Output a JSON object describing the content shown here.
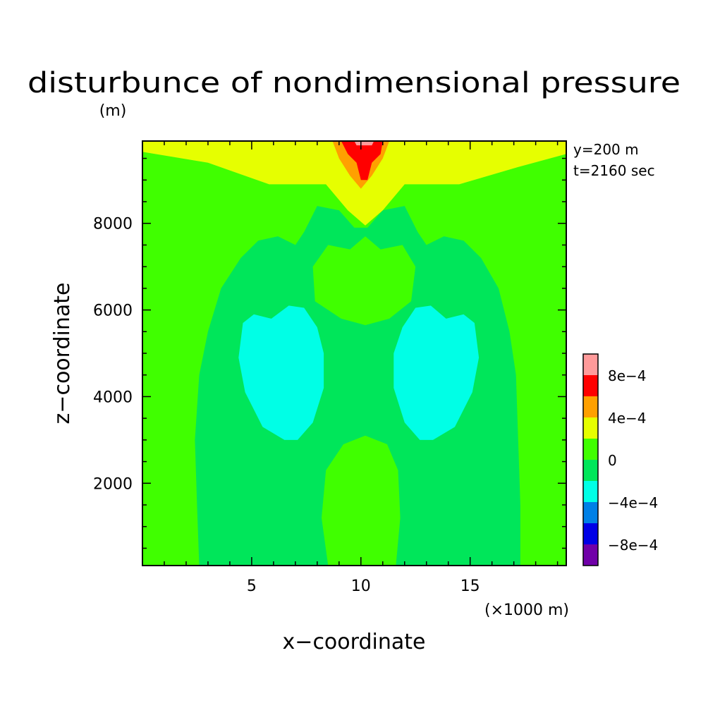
{
  "chart_data": {
    "type": "heatmap",
    "title": "disturbunce of nondimensional pressure",
    "y_unit": "(m)",
    "xlabel": "x−coordinate",
    "ylabel": "z−coordinate",
    "x_unit": "(×1000 m)",
    "annotations": [
      "y=200 m",
      "t=2160 sec"
    ],
    "xlim": [
      0,
      19.4
    ],
    "ylim": [
      100,
      9900
    ],
    "x_ticks": [
      5,
      10,
      15
    ],
    "x_tick_labels": [
      "5",
      "10",
      "15"
    ],
    "y_ticks": [
      2000,
      4000,
      6000,
      8000
    ],
    "y_tick_labels": [
      "2000",
      "4000",
      "6000",
      "8000"
    ],
    "colorbar": {
      "levels": [
        -0.001,
        -0.0008,
        -0.0006,
        -0.0004,
        -0.0002,
        0,
        0.0002,
        0.0004,
        0.0006,
        0.0008,
        0.001
      ],
      "colors": [
        "#7000a8",
        "#0000e6",
        "#0080e6",
        "#00ffe6",
        "#00e65a",
        "#40ff00",
        "#e6ff00",
        "#ffa000",
        "#ff0000",
        "#ff9a9a"
      ],
      "tick_values": [
        -0.0008,
        -0.0004,
        0,
        0.0004,
        0.0008
      ],
      "tick_labels": [
        "−8e−4",
        "−4e−4",
        "0",
        "4e−4",
        "8e−4"
      ]
    },
    "background_level": "-2e-4 to 0",
    "regions": [
      {
        "level": "0 to 2e-4",
        "color": "#40ff00",
        "where": "outer sides",
        "points": [
          [
            0,
            100
          ],
          [
            2.6,
            100
          ],
          [
            2.5,
            1500
          ],
          [
            2.4,
            3000
          ],
          [
            2.6,
            4500
          ],
          [
            3.0,
            5500
          ],
          [
            3.6,
            6500
          ],
          [
            4.5,
            7200
          ],
          [
            5.3,
            7600
          ],
          [
            6.2,
            7700
          ],
          [
            7.0,
            7500
          ],
          [
            7.4,
            7800
          ],
          [
            8.0,
            8400
          ],
          [
            9.0,
            8300
          ],
          [
            9.7,
            7900
          ],
          [
            10.3,
            7900
          ],
          [
            11.0,
            8300
          ],
          [
            12.0,
            8400
          ],
          [
            12.6,
            7800
          ],
          [
            13.0,
            7500
          ],
          [
            13.8,
            7700
          ],
          [
            14.7,
            7600
          ],
          [
            15.5,
            7200
          ],
          [
            16.3,
            6500
          ],
          [
            16.8,
            5500
          ],
          [
            17.1,
            4500
          ],
          [
            17.2,
            3000
          ],
          [
            17.3,
            1500
          ],
          [
            17.3,
            100
          ],
          [
            19.4,
            100
          ],
          [
            19.4,
            9600
          ],
          [
            17.2,
            9300
          ],
          [
            14.5,
            8900
          ],
          [
            12.0,
            8900
          ],
          [
            10.2,
            8800
          ],
          [
            8.4,
            8900
          ],
          [
            5.8,
            8900
          ],
          [
            3.0,
            9400
          ],
          [
            0,
            9650
          ]
        ]
      },
      {
        "level": "0 to 2e-4",
        "color": "#40ff00",
        "where": "central upper lobe",
        "points": [
          [
            7.9,
            6200
          ],
          [
            7.8,
            7000
          ],
          [
            8.5,
            7500
          ],
          [
            9.5,
            7400
          ],
          [
            10.2,
            7700
          ],
          [
            10.9,
            7400
          ],
          [
            11.9,
            7500
          ],
          [
            12.5,
            7000
          ],
          [
            12.3,
            6200
          ],
          [
            11.3,
            5800
          ],
          [
            10.2,
            5650
          ],
          [
            9.1,
            5800
          ]
        ]
      },
      {
        "level": "0 to 2e-4",
        "color": "#40ff00",
        "where": "central lower column",
        "points": [
          [
            8.5,
            100
          ],
          [
            8.2,
            1200
          ],
          [
            8.4,
            2300
          ],
          [
            9.2,
            2900
          ],
          [
            10.2,
            3100
          ],
          [
            11.2,
            2900
          ],
          [
            11.7,
            2300
          ],
          [
            11.8,
            1200
          ],
          [
            11.6,
            100
          ]
        ]
      },
      {
        "level": "-4e-4 to -2e-4",
        "color": "#00ffe6",
        "where": "left low",
        "points": [
          [
            6.5,
            3000
          ],
          [
            5.5,
            3300
          ],
          [
            4.7,
            4100
          ],
          [
            4.4,
            4900
          ],
          [
            4.6,
            5700
          ],
          [
            5.1,
            5900
          ],
          [
            5.9,
            5800
          ],
          [
            6.7,
            6100
          ],
          [
            7.4,
            6050
          ],
          [
            8.0,
            5600
          ],
          [
            8.3,
            5000
          ],
          [
            8.3,
            4200
          ],
          [
            7.8,
            3400
          ],
          [
            7.1,
            3000
          ]
        ]
      },
      {
        "level": "-4e-4 to -2e-4",
        "color": "#00ffe6",
        "where": "right low",
        "points": [
          [
            12.7,
            3000
          ],
          [
            12.0,
            3400
          ],
          [
            11.5,
            4200
          ],
          [
            11.5,
            5000
          ],
          [
            11.9,
            5600
          ],
          [
            12.5,
            6050
          ],
          [
            13.2,
            6100
          ],
          [
            13.9,
            5800
          ],
          [
            14.7,
            5900
          ],
          [
            15.2,
            5700
          ],
          [
            15.4,
            4900
          ],
          [
            15.1,
            4100
          ],
          [
            14.3,
            3300
          ],
          [
            13.3,
            3000
          ]
        ]
      },
      {
        "level": "2e-4 to 4e-4",
        "color": "#e6ff00",
        "where": "top band",
        "points": [
          [
            0,
            9650
          ],
          [
            3.0,
            9400
          ],
          [
            5.8,
            8900
          ],
          [
            8.4,
            8900
          ],
          [
            9.4,
            8300
          ],
          [
            10.2,
            7950
          ],
          [
            11.0,
            8300
          ],
          [
            12.0,
            8900
          ],
          [
            14.5,
            8900
          ],
          [
            17.2,
            9300
          ],
          [
            19.4,
            9600
          ],
          [
            19.4,
            9900
          ],
          [
            0,
            9900
          ]
        ]
      },
      {
        "level": "4e-4 to 6e-4",
        "color": "#ffa000",
        "where": "top center",
        "points": [
          [
            8.7,
            9900
          ],
          [
            9.0,
            9500
          ],
          [
            9.5,
            9100
          ],
          [
            10.0,
            8800
          ],
          [
            10.5,
            9100
          ],
          [
            11.0,
            9500
          ],
          [
            11.3,
            9900
          ]
        ]
      },
      {
        "level": "6e-4 to 8e-4",
        "color": "#ff0000",
        "where": "top center",
        "points": [
          [
            9.1,
            9900
          ],
          [
            9.4,
            9600
          ],
          [
            9.8,
            9400
          ],
          [
            10.0,
            9000
          ],
          [
            10.3,
            9000
          ],
          [
            10.5,
            9400
          ],
          [
            10.9,
            9600
          ],
          [
            11.0,
            9900
          ]
        ]
      },
      {
        "level": "above 8e-4",
        "color": "#ff9a9a",
        "where": "top center",
        "points": [
          [
            9.7,
            9900
          ],
          [
            9.8,
            9800
          ],
          [
            10.5,
            9800
          ],
          [
            10.6,
            9900
          ]
        ]
      }
    ]
  }
}
